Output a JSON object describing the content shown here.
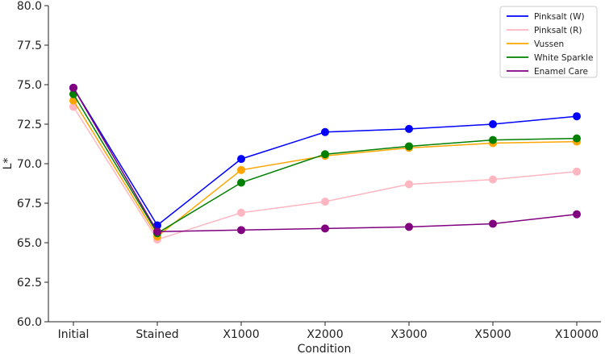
{
  "chart_data": {
    "type": "line",
    "title": "",
    "xlabel": "Condition",
    "ylabel": "L*",
    "categories": [
      "Initial",
      "Stained",
      "X1000",
      "X2000",
      "X3000",
      "X5000",
      "X10000"
    ],
    "ylim": [
      60.0,
      80.0
    ],
    "yticks": [
      60.0,
      62.5,
      65.0,
      67.5,
      70.0,
      72.5,
      75.0,
      77.5,
      80.0
    ],
    "ytick_labels": [
      "60.0",
      "62.5",
      "65.0",
      "67.5",
      "70.0",
      "72.5",
      "75.0",
      "77.5",
      "80.0"
    ],
    "grid": false,
    "legend_position": "top-right",
    "series": [
      {
        "name": "Pinksalt (W)",
        "color": "#0000ff",
        "values": [
          74.8,
          66.1,
          70.3,
          72.0,
          72.2,
          72.5,
          73.0
        ]
      },
      {
        "name": "Pinksalt (R)",
        "color": "#ffb6c1",
        "values": [
          73.6,
          65.2,
          66.9,
          67.6,
          68.7,
          69.0,
          69.5
        ]
      },
      {
        "name": "Vussen",
        "color": "#ffa500",
        "values": [
          74.0,
          65.4,
          69.6,
          70.5,
          71.0,
          71.3,
          71.4
        ]
      },
      {
        "name": "White Sparkle",
        "color": "#008000",
        "values": [
          74.4,
          65.6,
          68.8,
          70.6,
          71.1,
          71.5,
          71.6
        ]
      },
      {
        "name": "Enamel Care",
        "color": "#800080",
        "values": [
          74.8,
          65.7,
          65.8,
          65.9,
          66.0,
          66.2,
          66.8
        ]
      }
    ]
  }
}
